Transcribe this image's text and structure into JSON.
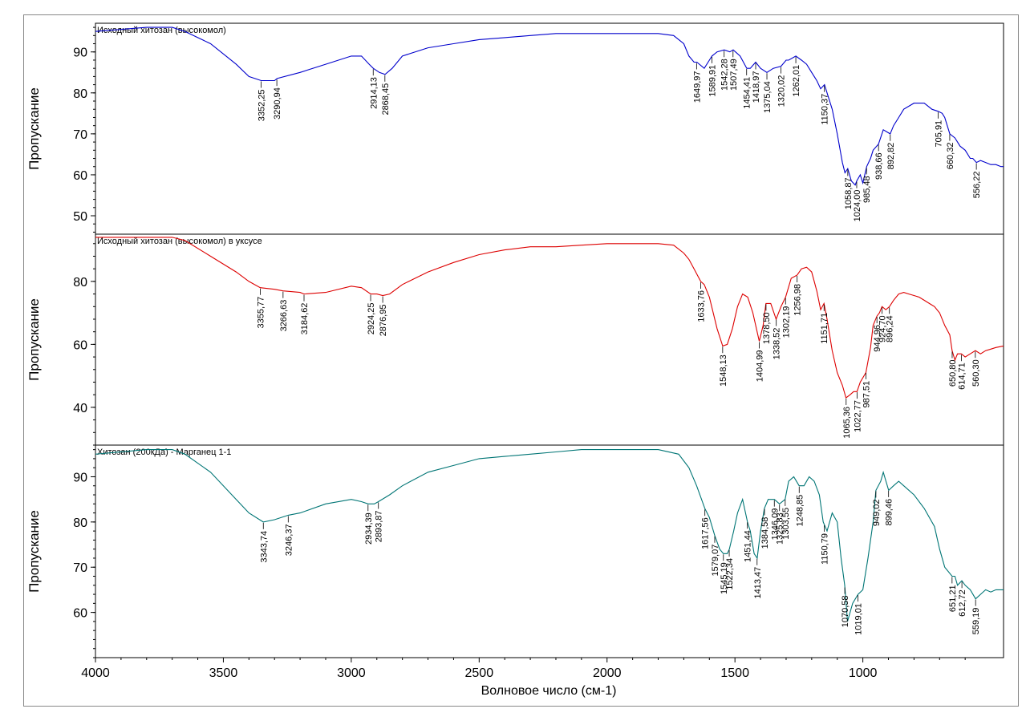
{
  "chart_data": {
    "type": "line",
    "xlabel": "Волновое число (см-1)",
    "xlim": [
      4000,
      450
    ],
    "x_ticks": [
      4000,
      3500,
      3000,
      2500,
      2000,
      1500,
      1000
    ],
    "panels": [
      {
        "title": "Исходный хитозан (высокомол)",
        "ylabel": "Пропускание",
        "color": "#0000cc",
        "ylim": [
          45.5,
          97
        ],
        "y_ticks": [
          50,
          60,
          70,
          80,
          90
        ],
        "series": [
          {
            "x": [
              4000,
              3800,
              3700,
              3650,
              3550,
              3450,
              3400,
              3352,
              3300,
              3290,
              3200,
              3100,
              3000,
              2960,
              2930,
              2914,
              2890,
              2868,
              2840,
              2800,
              2700,
              2600,
              2500,
              2400,
              2300,
              2200,
              2100,
              2000,
              1900,
              1800,
              1740,
              1700,
              1680,
              1660,
              1649,
              1620,
              1600,
              1590,
              1570,
              1542,
              1520,
              1507,
              1480,
              1454,
              1440,
              1419,
              1400,
              1375,
              1350,
              1320,
              1300,
              1290,
              1262,
              1240,
              1220,
              1200,
              1180,
              1165,
              1150,
              1140,
              1120,
              1100,
              1080,
              1070,
              1059,
              1045,
              1030,
              1024,
              1010,
              1000,
              985,
              970,
              960,
              939,
              920,
              893,
              880,
              860,
              840,
              800,
              760,
              730,
              706,
              690,
              680,
              660,
              640,
              620,
              600,
              580,
              570,
              556,
              540,
              520,
              500,
              480,
              460,
              450
            ],
            "y": [
              95,
              96,
              96,
              95,
              92,
              87,
              84,
              83,
              83,
              83.5,
              85,
              87,
              89,
              89,
              87,
              86,
              85,
              84.5,
              86,
              89,
              91,
              92,
              93,
              93.5,
              94,
              94.5,
              94.5,
              94.5,
              94.5,
              94.5,
              94,
              92,
              89,
              87.5,
              87.5,
              86,
              88,
              89,
              90,
              90.5,
              90,
              90.5,
              89,
              86,
              86,
              87.5,
              86,
              85,
              86,
              86.5,
              88,
              88,
              89,
              88,
              87,
              85,
              83,
              81,
              82,
              80,
              76,
              70,
              63,
              60.5,
              61.5,
              58.5,
              57.5,
              58.5,
              60,
              58,
              62,
              64,
              66,
              67.5,
              71,
              70,
              72,
              74,
              76,
              77.5,
              77.5,
              76,
              75.5,
              75,
              74,
              70,
              69,
              67,
              66,
              64,
              64,
              63,
              63.5,
              63,
              62.5,
              62.5,
              62,
              62
            ]
          }
        ],
        "annotations": [
          "3352,25",
          "3290,94",
          "2914,13",
          "2868,45",
          "1649,97",
          "1589,91",
          "1542,28",
          "1507,49",
          "1454,41",
          "1418,97",
          "1375,04",
          "1320,02",
          "1262,01",
          "1150,37",
          "1058,87",
          "1024,00",
          "985,48",
          "938,66",
          "892,82",
          "705,91",
          "660,32",
          "556,22"
        ]
      },
      {
        "title": "Исходный хитозан (высокомол) в уксусе",
        "ylabel": "Пропускание",
        "color": "#dd0000",
        "ylim": [
          28,
          95
        ],
        "y_ticks": [
          40,
          60,
          80
        ],
        "series": [
          {
            "x": [
              4000,
              3800,
              3700,
              3650,
              3550,
              3450,
              3400,
              3356,
              3300,
              3267,
              3200,
              3185,
              3100,
              3000,
              2960,
              2924,
              2900,
              2877,
              2850,
              2800,
              2700,
              2600,
              2500,
              2400,
              2300,
              2200,
              2100,
              2000,
              1900,
              1800,
              1740,
              1700,
              1680,
              1660,
              1634,
              1620,
              1600,
              1570,
              1548,
              1530,
              1510,
              1490,
              1470,
              1450,
              1430,
              1405,
              1390,
              1379,
              1360,
              1339,
              1320,
              1302,
              1280,
              1257,
              1240,
              1220,
              1200,
              1180,
              1165,
              1152,
              1140,
              1120,
              1100,
              1080,
              1066,
              1050,
              1036,
              1023,
              1010,
              988,
              970,
              960,
              945,
              935,
              925,
              910,
              896,
              880,
              860,
              840,
              820,
              800,
              780,
              760,
              740,
              720,
              700,
              680,
              660,
              651,
              640,
              630,
              615,
              600,
              580,
              560,
              540,
              520,
              500,
              480,
              450
            ],
            "y": [
              94,
              94,
              94,
              93,
              88,
              83,
              80,
              78,
              77.5,
              77,
              76.5,
              76,
              76.5,
              78.5,
              78,
              76,
              76,
              75.5,
              76,
              79,
              83,
              86,
              88.5,
              90,
              91,
              91,
              91.5,
              92,
              92,
              92,
              91.5,
              89,
              87,
              84,
              80,
              79,
              75,
              65,
              59.5,
              60,
              65,
              72,
              76,
              75,
              70,
              61,
              66,
              73,
              73,
              68,
              72,
              75,
              81,
              82,
              84,
              84.5,
              83,
              77,
              71,
              73,
              68,
              58,
              51,
              47,
              43,
              44,
              45,
              45,
              48,
              51,
              59,
              66,
              69,
              70,
              72,
              71,
              72,
              74,
              76,
              76.5,
              76,
              75.5,
              75,
              74,
              73,
              72,
              70,
              66,
              63,
              58,
              55,
              57,
              57,
              56,
              57,
              58,
              57,
              58,
              58.5,
              59,
              59.5
            ]
          }
        ],
        "annotations": [
          "3355,77",
          "3266,63",
          "3184,62",
          "2924,25",
          "2876,95",
          "1633,76",
          "1548,13",
          "1404,99",
          "1378,50",
          "1338,52",
          "1302,19",
          "1256,98",
          "1151,71",
          "1065,36",
          "1022,77",
          "987,51",
          "944,96",
          "924,70",
          "896,24",
          "650,80",
          "614,71",
          "560,30"
        ]
      },
      {
        "title": "Хитозан (200кДа) - Марганец 1-1",
        "ylabel": "Пропускание",
        "color": "#007575",
        "ylim": [
          50,
          97
        ],
        "y_ticks": [
          60,
          70,
          80,
          90
        ],
        "series": [
          {
            "x": [
              4000,
              3800,
              3700,
              3650,
              3550,
              3450,
              3400,
              3344,
              3300,
              3246,
              3200,
              3100,
              3000,
              2960,
              2934,
              2910,
              2894,
              2850,
              2800,
              2700,
              2600,
              2500,
              2400,
              2300,
              2200,
              2100,
              2000,
              1900,
              1800,
              1720,
              1680,
              1650,
              1618,
              1600,
              1579,
              1560,
              1545,
              1530,
              1522,
              1505,
              1490,
              1470,
              1451,
              1440,
              1425,
              1413,
              1400,
              1385,
              1370,
              1346,
              1326,
              1304,
              1290,
              1270,
              1249,
              1230,
              1210,
              1190,
              1170,
              1155,
              1140,
              1120,
              1100,
              1085,
              1071,
              1060,
              1040,
              1019,
              1000,
              980,
              960,
              949,
              930,
              920,
              899,
              880,
              860,
              840,
              800,
              760,
              720,
              700,
              680,
              651,
              640,
              630,
              613,
              600,
              580,
              559,
              540,
              520,
              500,
              480,
              450
            ],
            "y": [
              95,
              96,
              96,
              95,
              91,
              85,
              82,
              80,
              80.5,
              81.5,
              82,
              84,
              85,
              84.5,
              84,
              84,
              84.5,
              86,
              88,
              91,
              92.5,
              94,
              94.5,
              95,
              95.5,
              96,
              96,
              96,
              96,
              95,
              92,
              88,
              83,
              81,
              77,
              74,
              73,
              73,
              74,
              78,
              82,
              85,
              80,
              78,
              73,
              72,
              78,
              83,
              85,
              85,
              84,
              85,
              89,
              90,
              88,
              88,
              90,
              89,
              86,
              80,
              78,
              82,
              80,
              72,
              66,
              58,
              62,
              64,
              65,
              72,
              80,
              87,
              89,
              91,
              87,
              88,
              89,
              88,
              86,
              83,
              79,
              74,
              70,
              68,
              68,
              66,
              67,
              66,
              65,
              63,
              64,
              65,
              64.5,
              65,
              65
            ]
          }
        ],
        "annotations": [
          "3343,74",
          "3246,37",
          "2934,39",
          "2893,87",
          "1617,56",
          "1579,07",
          "1545,19",
          "1522,34",
          "1451,44",
          "1413,47",
          "1384,58",
          "1346,09",
          "1325,83",
          "1303,55",
          "1248,85",
          "1150,79",
          "1070,58",
          "1019,01",
          "949,02",
          "899,46",
          "651,21",
          "612,72",
          "559,19"
        ]
      }
    ]
  }
}
